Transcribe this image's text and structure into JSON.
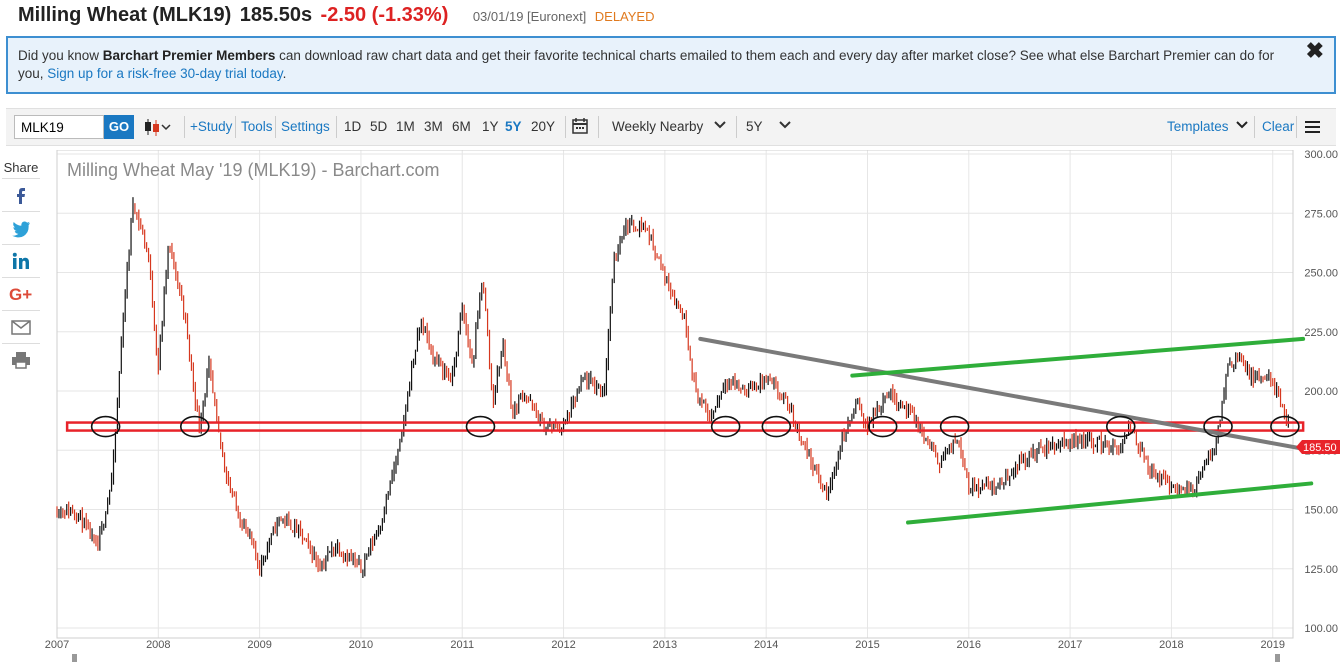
{
  "header": {
    "title": "Milling Wheat (MLK19)",
    "price": "185.50s",
    "change": "-2.50 (-1.33%)",
    "meta": "03/01/19 [Euronext]",
    "delayed": "DELAYED"
  },
  "banner": {
    "text1": "Did you know ",
    "bold": "Barchart Premier Members",
    "text2": " can download raw chart data and get their favorite technical charts emailed to them each and every day after market close? See what else Barchart Premier can do for you, ",
    "link": "Sign up for a risk-free 30-day trial today",
    "text3": ".",
    "close": "✖"
  },
  "toolbar": {
    "symbol": "MLK19",
    "go": "GO",
    "study": "+Study",
    "tools": "Tools",
    "settings": "Settings",
    "periods": [
      "1D",
      "5D",
      "1M",
      "3M",
      "6M",
      "1Y",
      "5Y",
      "20Y"
    ],
    "active_period": "5Y",
    "aggregation": "Weekly Nearby",
    "range": "5Y",
    "templates": "Templates",
    "clear": "Clear",
    "chevron": "⌄"
  },
  "share": {
    "label": "Share",
    "icons": [
      "facebook-icon",
      "twitter-icon",
      "linkedin-icon",
      "google-plus-icon",
      "email-icon",
      "print-icon"
    ]
  },
  "colors": {
    "up": "#111111",
    "down": "#d6381f",
    "support": "#e8232a",
    "trend": "#7a7a7a",
    "channel": "#2fae3a",
    "accent": "#1a78c2"
  },
  "chart_data": {
    "type": "line",
    "title": "Milling Wheat May '19 (MLK19) - Barchart.com",
    "xlabel": "",
    "ylabel": "",
    "ylim": [
      100,
      300
    ],
    "yticks": [
      "300.00",
      "275.00",
      "250.00",
      "225.00",
      "200.00",
      "175.00",
      "150.00",
      "125.00",
      "100.00"
    ],
    "xticks": [
      "2007",
      "2008",
      "2009",
      "2010",
      "2011",
      "2012",
      "2013",
      "2014",
      "2015",
      "2016",
      "2017",
      "2018",
      "2019"
    ],
    "last_price": "185.50",
    "grid": true,
    "series": [
      {
        "x": [
          2007.0,
          2007.2,
          2007.4,
          2007.55,
          2007.65,
          2007.75,
          2007.9,
          2008.0,
          2008.1,
          2008.25,
          2008.4,
          2008.5,
          2008.6,
          2008.7,
          2008.8,
          2008.9,
          2009.0,
          2009.2,
          2009.4,
          2009.6,
          2009.75,
          2010.0,
          2010.2,
          2010.4,
          2010.5,
          2010.6,
          2010.7,
          2010.9,
          2011.0,
          2011.1,
          2011.2,
          2011.3,
          2011.4,
          2011.5,
          2011.6,
          2011.8,
          2012.0,
          2012.2,
          2012.4,
          2012.5,
          2012.6,
          2012.8,
          2012.9,
          2013.0,
          2013.2,
          2013.3,
          2013.45,
          2013.6,
          2013.8,
          2014.0,
          2014.2,
          2014.4,
          2014.6,
          2014.75,
          2014.9,
          2015.0,
          2015.2,
          2015.4,
          2015.5,
          2015.7,
          2015.9,
          2016.0,
          2016.3,
          2016.5,
          2016.7,
          2016.9,
          2017.1,
          2017.3,
          2017.5,
          2017.6,
          2017.8,
          2018.0,
          2018.2,
          2018.3,
          2018.45,
          2018.55,
          2018.65,
          2018.8,
          2019.0,
          2019.12,
          2019.17
        ],
        "values": [
          150,
          149,
          133,
          165,
          230,
          280,
          258,
          210,
          262,
          235,
          185,
          210,
          180,
          160,
          147,
          138,
          126,
          147,
          140,
          126,
          135,
          125,
          145,
          180,
          210,
          230,
          215,
          205,
          235,
          210,
          250,
          195,
          220,
          190,
          200,
          185,
          185,
          205,
          200,
          255,
          270,
          270,
          260,
          248,
          230,
          200,
          188,
          205,
          200,
          205,
          195,
          175,
          155,
          180,
          195,
          185,
          200,
          192,
          185,
          170,
          180,
          160,
          160,
          170,
          175,
          178,
          180,
          178,
          175,
          185,
          165,
          160,
          158,
          165,
          180,
          210,
          215,
          205,
          205,
          188,
          185.5
        ]
      }
    ],
    "annotations": {
      "support": [
        2007.1,
        185,
        2019.3,
        185
      ],
      "downtrend": [
        2013.35,
        222,
        2019.38,
        175
      ],
      "upper_channel": [
        2014.85,
        206.5,
        2019.3,
        222
      ],
      "lower_channel": [
        2015.4,
        144.5,
        2019.38,
        161
      ],
      "circles_x": [
        2007.48,
        2008.36,
        2011.18,
        2013.6,
        2014.1,
        2015.15,
        2015.86,
        2017.5,
        2018.46,
        2019.12
      ]
    }
  }
}
